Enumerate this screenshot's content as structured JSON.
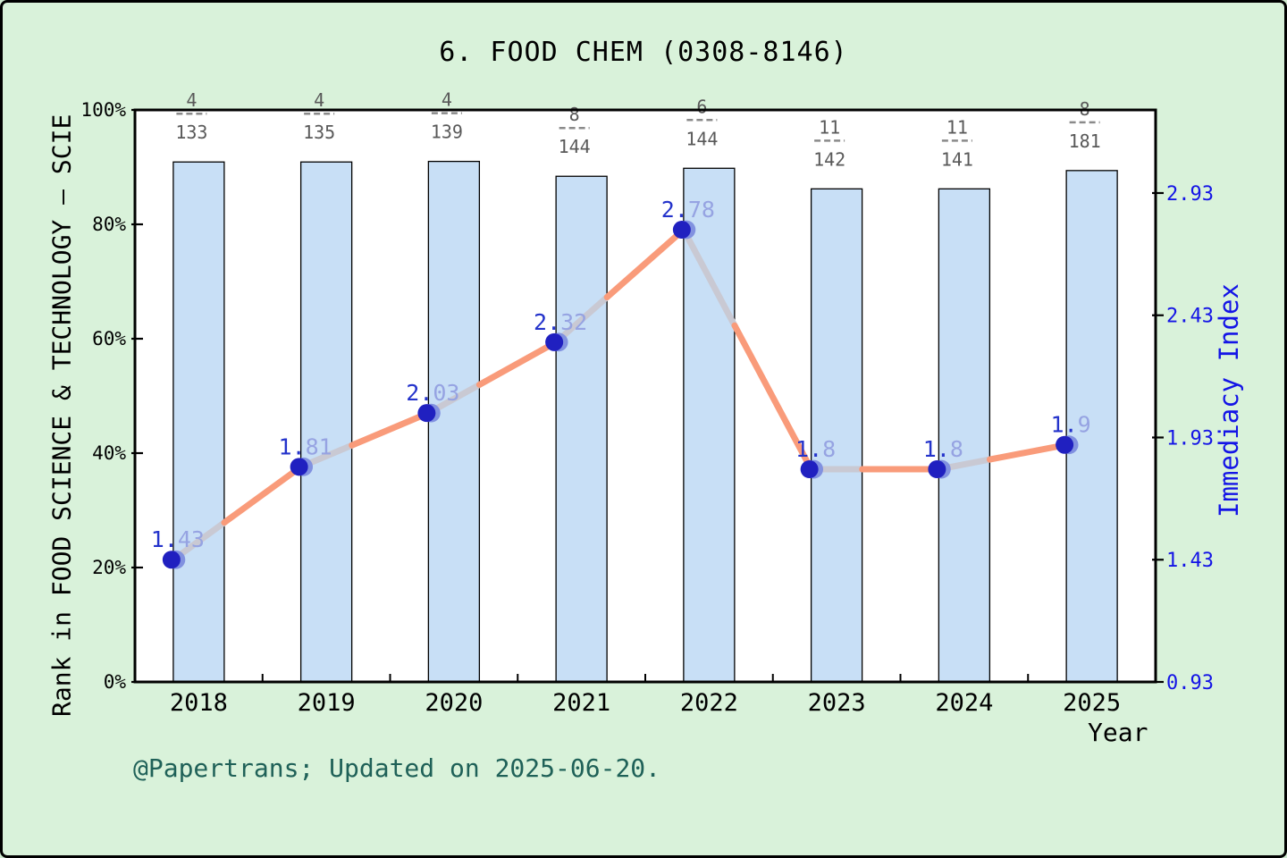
{
  "title": "6. FOOD CHEM (0308-8146)",
  "footer": "@Papertrans; Updated on 2025-06-20.",
  "axes": {
    "left": {
      "title": "Rank in FOOD SCIENCE & TECHNOLOGY — SCIE",
      "tick_labels": [
        "0%",
        "20%",
        "40%",
        "60%",
        "80%",
        "100%"
      ],
      "lim": [
        0,
        100
      ]
    },
    "right": {
      "title": "Immediacy Index",
      "tick_labels": [
        "0.93",
        "1.43",
        "1.93",
        "2.43",
        "2.93"
      ],
      "lim": [
        0.93,
        3.27
      ]
    },
    "x": {
      "title": "Year"
    }
  },
  "chart_data": {
    "type": "bar+line",
    "categories": [
      "2018",
      "2019",
      "2020",
      "2021",
      "2022",
      "2023",
      "2024",
      "2025"
    ],
    "series": [
      {
        "name": "rank-percentile-bars",
        "type": "bar",
        "axis": "left",
        "unit": "%",
        "values": [
          90.9,
          90.9,
          91.0,
          88.4,
          89.8,
          86.2,
          86.2,
          89.4
        ],
        "rank_labels": [
          {
            "rank": "4",
            "total": "133"
          },
          {
            "rank": "4",
            "total": "135"
          },
          {
            "rank": "4",
            "total": "139"
          },
          {
            "rank": "8",
            "total": "144"
          },
          {
            "rank": "6",
            "total": "144"
          },
          {
            "rank": "11",
            "total": "142"
          },
          {
            "rank": "11",
            "total": "141"
          },
          {
            "rank": "8",
            "total": "181"
          }
        ]
      },
      {
        "name": "immediacy-index-line",
        "type": "line",
        "axis": "right",
        "values": [
          1.43,
          1.81,
          2.03,
          2.32,
          2.78,
          1.8,
          1.8,
          1.9
        ],
        "point_labels": [
          "1.43",
          "1.81",
          "2.03",
          "2.32",
          "2.78",
          "1.8",
          "1.8",
          "1.9"
        ]
      }
    ],
    "grid": false,
    "legend": "none"
  },
  "colors": {
    "background": "#d9f2da",
    "plot_background": "#ffffff",
    "frame": "#000000",
    "bar_fill": "#c8dff6",
    "bar_border": "#000000",
    "line_orange": "#f99b7a",
    "line_gray": "#c9c9d3",
    "marker_dark": "#2020c0",
    "marker_light": "#8191e0",
    "point_label_dark": "#2433cb",
    "point_label_light": "#96a3e2",
    "right_axis_text": "#1414e6",
    "fraction_text": "#595959",
    "fraction_dash": "#8a8a8a",
    "footer_text": "#1f6158",
    "axis_text": "#000000"
  }
}
